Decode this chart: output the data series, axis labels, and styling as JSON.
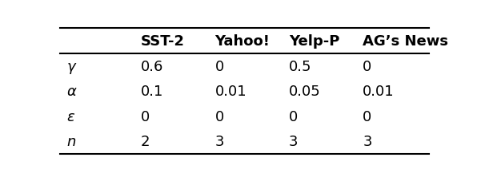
{
  "col_headers": [
    "",
    "SST-2",
    "Yahoo!",
    "Yelp-P",
    "AG’s News"
  ],
  "row_labels": [
    "γ",
    "α",
    "ε",
    "n"
  ],
  "table_data": [
    [
      "0.6",
      "0",
      "0.5",
      "0"
    ],
    [
      "0.1",
      "0.01",
      "0.05",
      "0.01"
    ],
    [
      "0",
      "0",
      "0",
      "0"
    ],
    [
      "2",
      "3",
      "3",
      "3"
    ]
  ],
  "figsize": [
    5.96,
    2.28
  ],
  "dpi": 100,
  "background_color": "#ffffff"
}
